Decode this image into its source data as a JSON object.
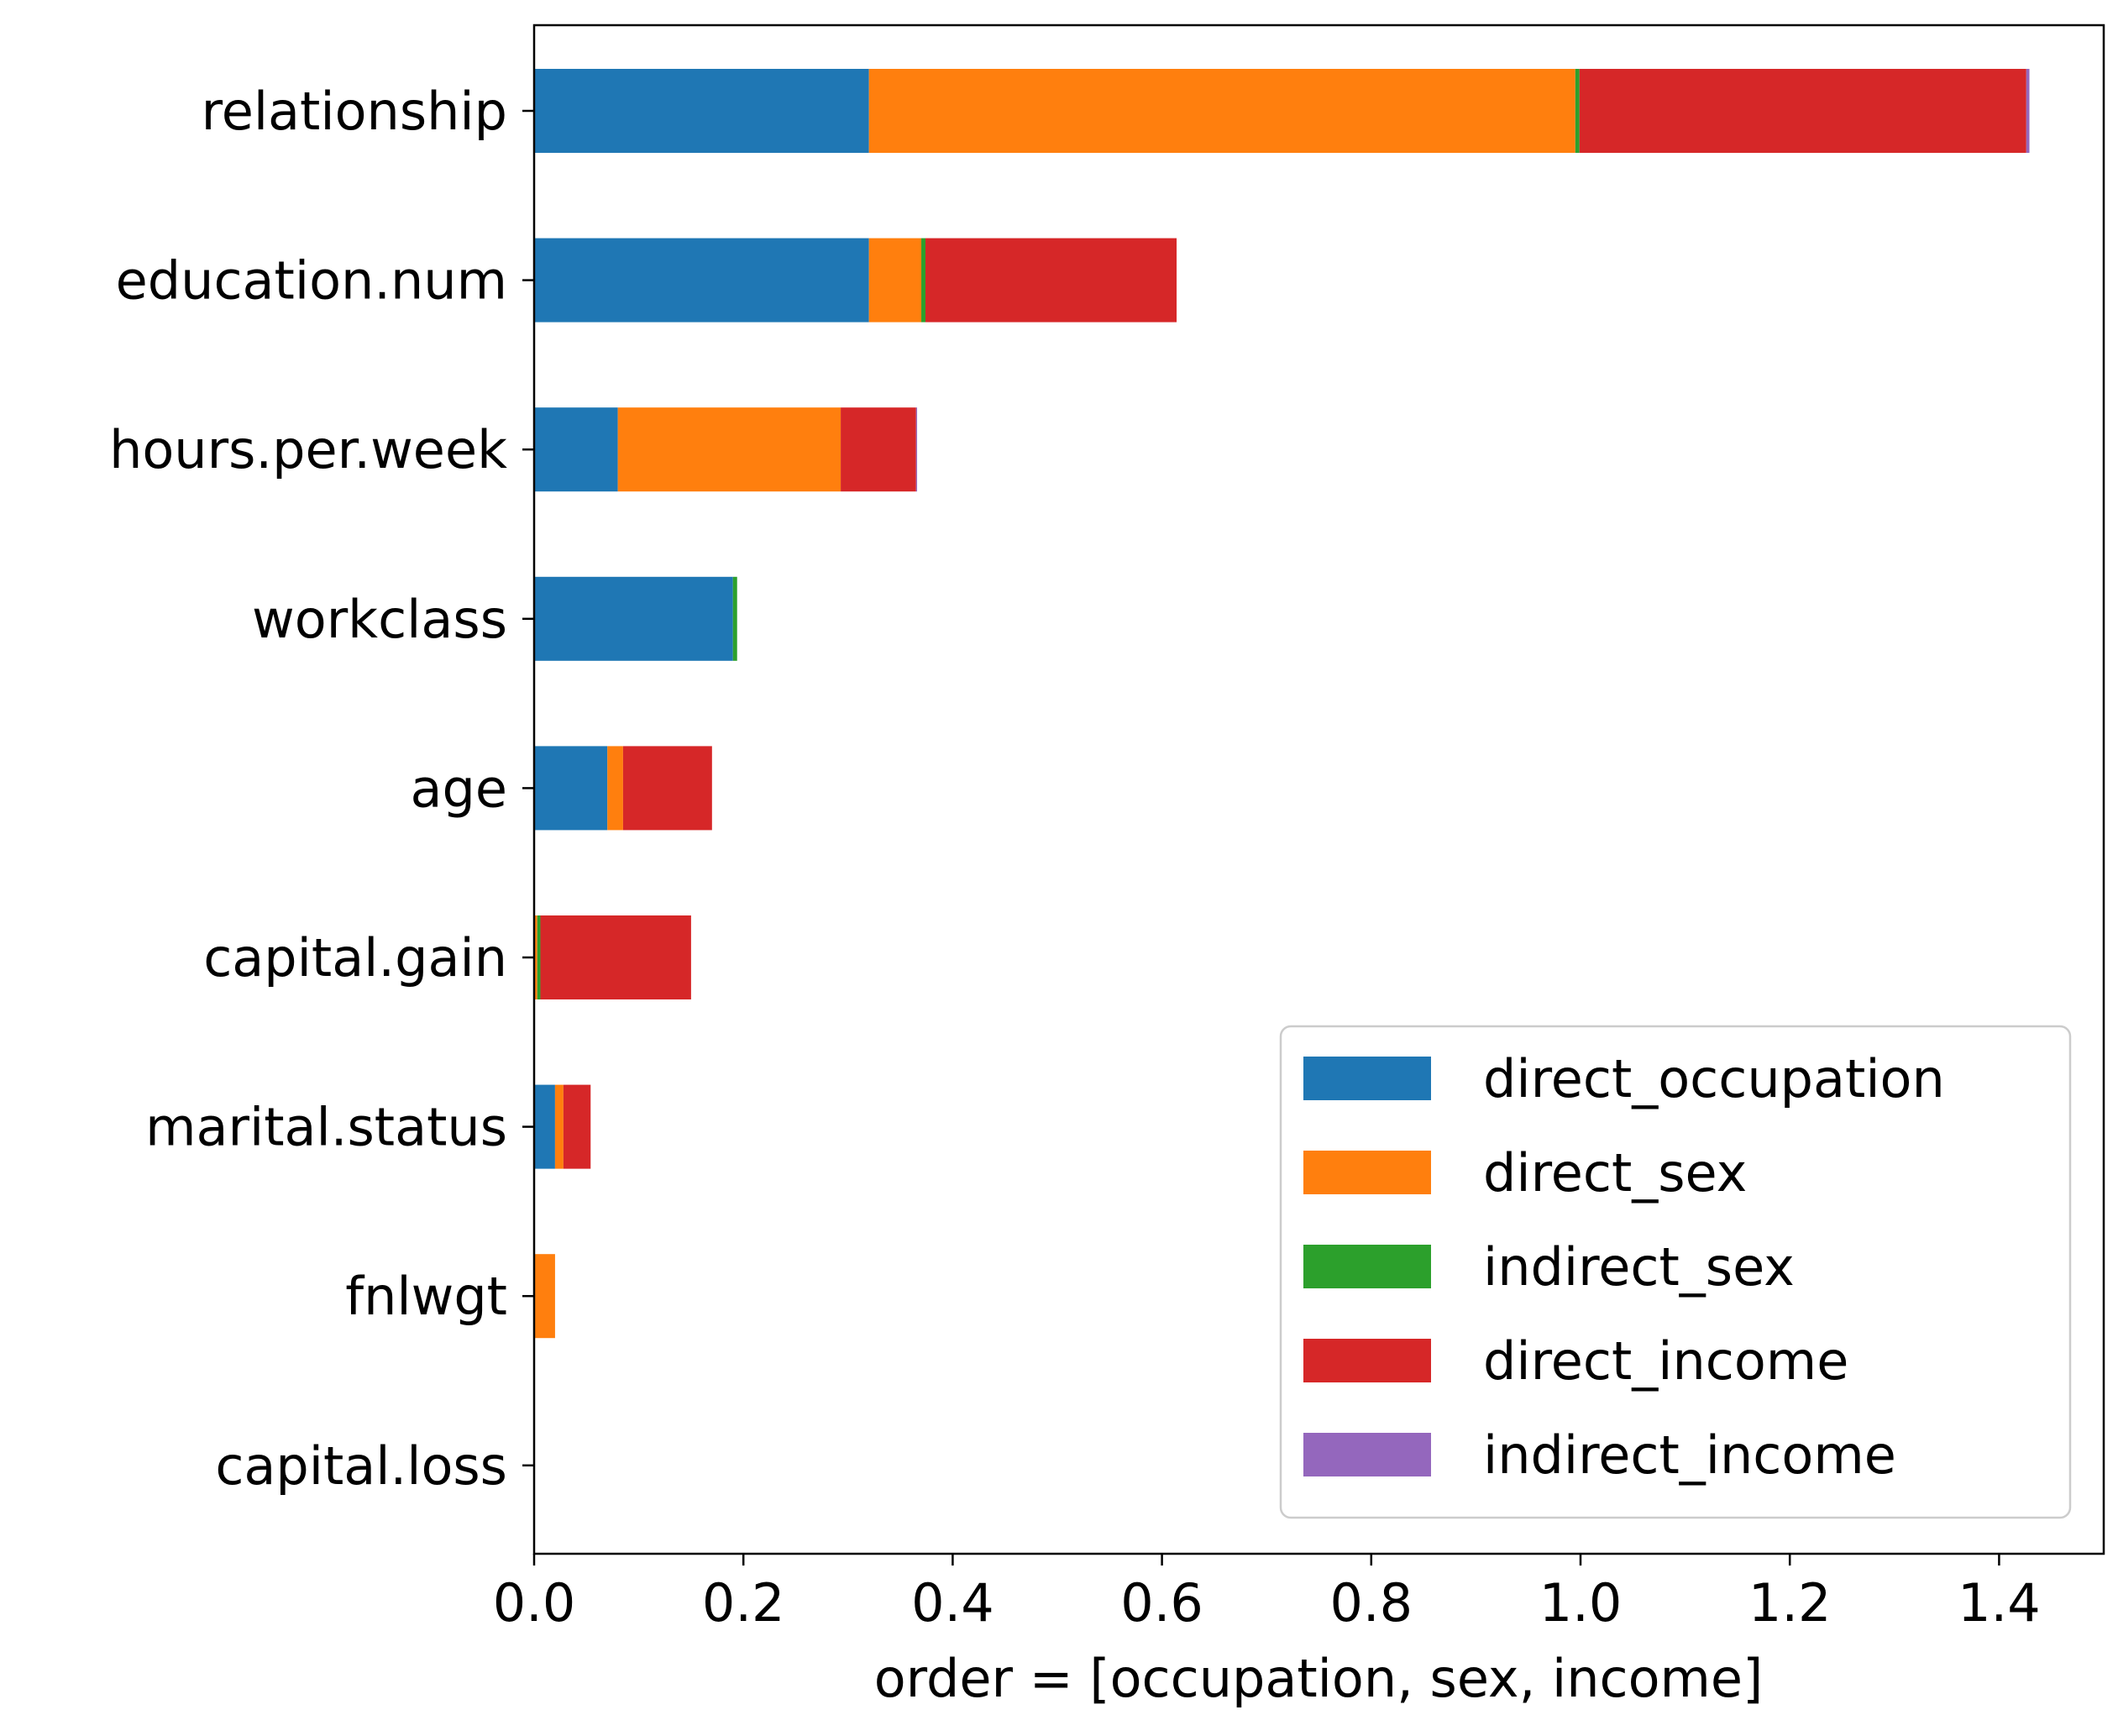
{
  "chart_data": {
    "type": "bar",
    "orientation": "horizontal",
    "stacked": true,
    "categories": [
      "relationship",
      "education.num",
      "hours.per.week",
      "workclass",
      "age",
      "capital.gain",
      "marital.status",
      "fnlwgt",
      "capital.loss"
    ],
    "series": [
      {
        "name": "direct_occupation",
        "color": "#1f77b4",
        "values": [
          0.32,
          0.32,
          0.08,
          0.19,
          0.07,
          0.0,
          0.02,
          0.0,
          0.0
        ]
      },
      {
        "name": "direct_sex",
        "color": "#ff7f0e",
        "values": [
          0.675,
          0.05,
          0.213,
          0.0,
          0.015,
          0.003,
          0.008,
          0.02,
          0.0
        ]
      },
      {
        "name": "indirect_sex",
        "color": "#2ca02c",
        "values": [
          0.004,
          0.004,
          0.0,
          0.004,
          0.0,
          0.003,
          0.0,
          0.0,
          0.0
        ]
      },
      {
        "name": "direct_income",
        "color": "#d62728",
        "values": [
          0.427,
          0.24,
          0.072,
          0.0,
          0.085,
          0.144,
          0.026,
          0.0,
          0.0
        ]
      },
      {
        "name": "indirect_income",
        "color": "#9467bd",
        "values": [
          0.003,
          0.0,
          0.001,
          0.0,
          0.0,
          0.0,
          0.0,
          0.0,
          0.0
        ]
      }
    ],
    "xlabel": "order = [occupation, sex, income]",
    "ylabel": "",
    "title": "",
    "xlim": [
      0.0,
      1.5
    ],
    "xticks": [
      0.0,
      0.2,
      0.4,
      0.6,
      0.8,
      1.0,
      1.2,
      1.4
    ],
    "xtick_labels": [
      "0.0",
      "0.2",
      "0.4",
      "0.6",
      "0.8",
      "1.0",
      "1.2",
      "1.4"
    ],
    "grid": false,
    "legend_position": "lower-right"
  }
}
